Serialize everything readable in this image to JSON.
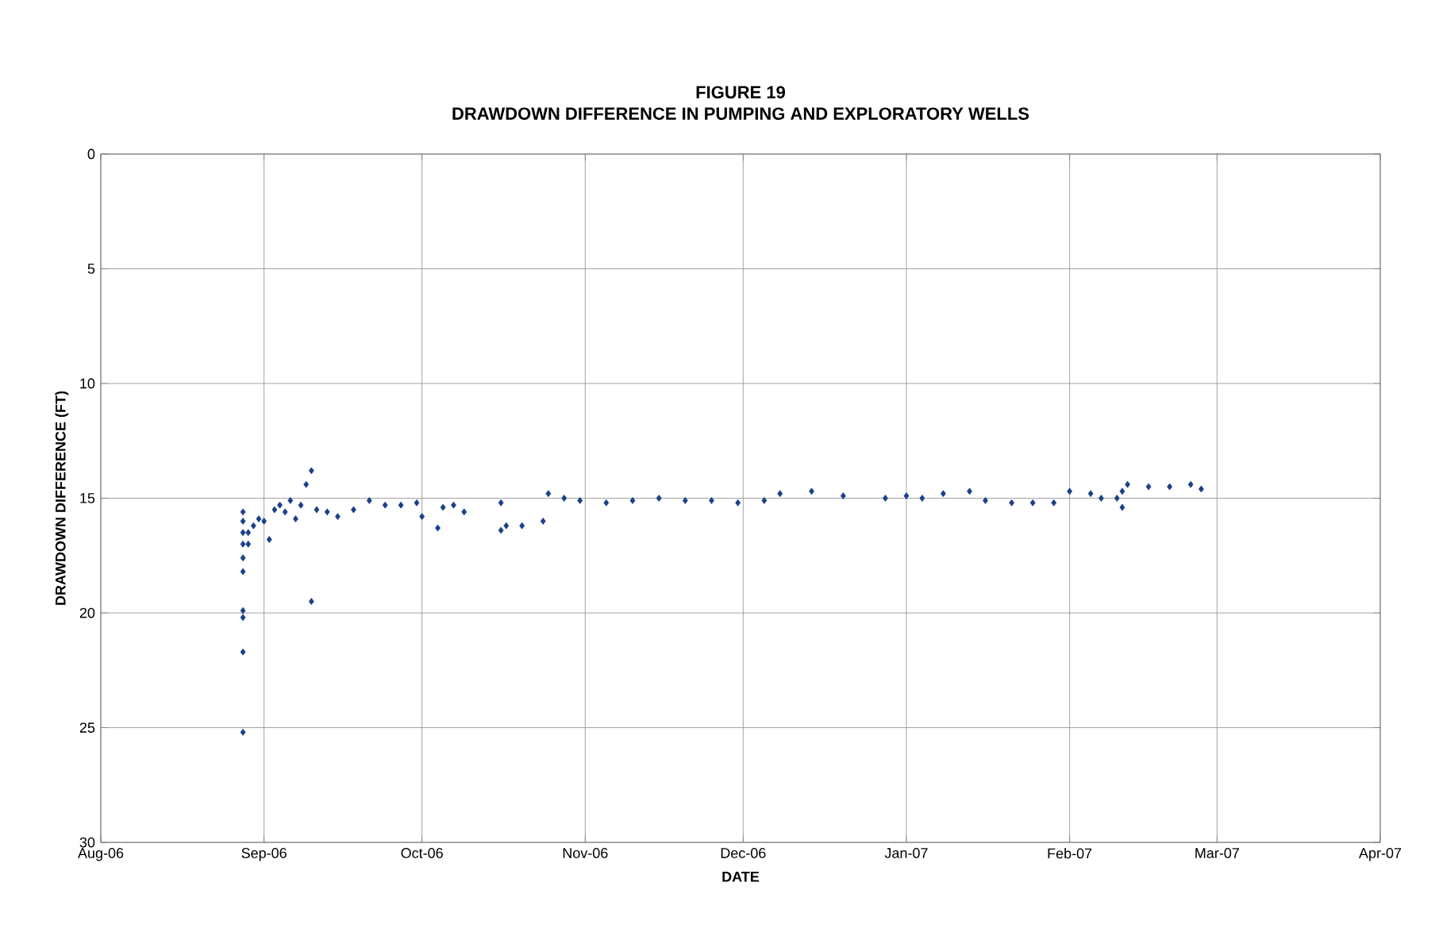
{
  "chart_data": {
    "type": "scatter",
    "title": "FIGURE 19",
    "subtitle": "DRAWDOWN DIFFERENCE IN PUMPING AND EXPLORATORY WELLS",
    "xlabel": "DATE",
    "ylabel": "DRAWDOWN DIFFERENCE (FT)",
    "xlim": [
      "2006-08-01",
      "2007-04-01"
    ],
    "xticks": [
      {
        "value": "2006-08-01",
        "label": "Aug-06"
      },
      {
        "value": "2006-09-01",
        "label": "Sep-06"
      },
      {
        "value": "2006-10-01",
        "label": "Oct-06"
      },
      {
        "value": "2006-11-01",
        "label": "Nov-06"
      },
      {
        "value": "2006-12-01",
        "label": "Dec-06"
      },
      {
        "value": "2007-01-01",
        "label": "Jan-07"
      },
      {
        "value": "2007-02-01",
        "label": "Feb-07"
      },
      {
        "value": "2007-03-01",
        "label": "Mar-07"
      },
      {
        "value": "2007-04-01",
        "label": "Apr-07"
      }
    ],
    "ylim": [
      30,
      0
    ],
    "yticks": [
      0,
      5,
      10,
      15,
      20,
      25,
      30
    ],
    "grid": true,
    "marker": "diamond",
    "series": [
      {
        "color": "#1a3f8a",
        "x": [
          "2006-08-28",
          "2006-08-28",
          "2006-08-28",
          "2006-08-28",
          "2006-08-28",
          "2006-08-28",
          "2006-08-28",
          "2006-08-28",
          "2006-08-28",
          "2006-08-28",
          "2006-08-29",
          "2006-08-29",
          "2006-08-30",
          "2006-08-31",
          "2006-09-01",
          "2006-09-02",
          "2006-09-03",
          "2006-09-04",
          "2006-09-05",
          "2006-09-06",
          "2006-09-07",
          "2006-09-08",
          "2006-09-09",
          "2006-09-10",
          "2006-09-10",
          "2006-09-11",
          "2006-09-13",
          "2006-09-15",
          "2006-09-18",
          "2006-09-21",
          "2006-09-24",
          "2006-09-27",
          "2006-09-30",
          "2006-10-01",
          "2006-10-04",
          "2006-10-05",
          "2006-10-07",
          "2006-10-09",
          "2006-10-16",
          "2006-10-16",
          "2006-10-17",
          "2006-10-20",
          "2006-10-24",
          "2006-10-25",
          "2006-10-28",
          "2006-10-31",
          "2006-11-05",
          "2006-11-10",
          "2006-11-15",
          "2006-11-20",
          "2006-11-25",
          "2006-11-30",
          "2006-12-05",
          "2006-12-08",
          "2006-12-14",
          "2006-12-20",
          "2006-12-28",
          "2007-01-01",
          "2007-01-04",
          "2007-01-08",
          "2007-01-13",
          "2007-01-16",
          "2007-01-21",
          "2007-01-25",
          "2007-01-29",
          "2007-02-01",
          "2007-02-05",
          "2007-02-07",
          "2007-02-10",
          "2007-02-11",
          "2007-02-11",
          "2007-02-12",
          "2007-02-16",
          "2007-02-20",
          "2007-02-24",
          "2007-02-26"
        ],
        "values": [
          25.2,
          21.7,
          20.2,
          19.9,
          18.2,
          17.6,
          17.0,
          16.5,
          16.0,
          15.6,
          17.0,
          16.5,
          16.2,
          15.9,
          16.0,
          16.8,
          15.5,
          15.3,
          15.6,
          15.1,
          15.9,
          15.3,
          14.4,
          13.8,
          19.5,
          15.5,
          15.6,
          15.8,
          15.5,
          15.1,
          15.3,
          15.3,
          15.2,
          15.8,
          16.3,
          15.4,
          15.3,
          15.6,
          15.2,
          16.4,
          16.2,
          16.2,
          16.0,
          14.8,
          15.0,
          15.1,
          15.2,
          15.1,
          15.0,
          15.1,
          15.1,
          15.2,
          15.1,
          14.8,
          14.7,
          14.9,
          15.0,
          14.9,
          15.0,
          14.8,
          14.7,
          15.1,
          15.2,
          15.2,
          15.2,
          14.7,
          14.8,
          15.0,
          15.0,
          15.4,
          14.7,
          14.4,
          14.5,
          14.5,
          14.4,
          14.6
        ]
      }
    ]
  }
}
